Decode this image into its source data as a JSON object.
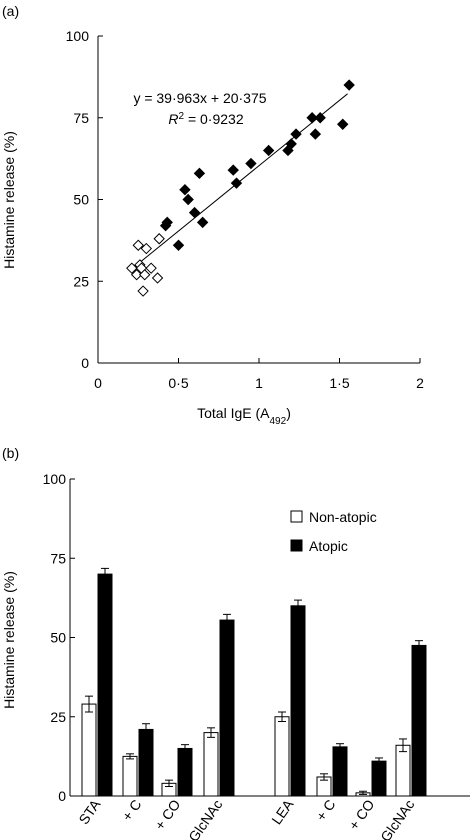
{
  "chart_data": [
    {
      "panel": "(a)",
      "type": "scatter",
      "xlabel": "Total IgE (A",
      "xlabel_sub": "492",
      "xlabel_end": ")",
      "ylabel": "Histamine release (%)",
      "xlim": [
        0,
        2
      ],
      "ylim": [
        0,
        100
      ],
      "xticks": [
        "0",
        "0·5",
        "1",
        "1·5",
        "2"
      ],
      "yticks": [
        "0",
        "25",
        "50",
        "75",
        "100"
      ],
      "equation": "y = 39·963x + 20·375",
      "r2_label": "R",
      "r2_sup": "2",
      "r2_value": " = 0·9232",
      "fit": {
        "slope": 39.963,
        "intercept": 20.375,
        "x_range": [
          0.2,
          1.55
        ]
      },
      "series": [
        {
          "name": "Non-atopic",
          "marker": "open-diamond",
          "points": [
            [
              0.21,
              29
            ],
            [
              0.24,
              27
            ],
            [
              0.25,
              36
            ],
            [
              0.26,
              30
            ],
            [
              0.27,
              29
            ],
            [
              0.28,
              22
            ],
            [
              0.29,
              27
            ],
            [
              0.3,
              35
            ],
            [
              0.33,
              29
            ],
            [
              0.37,
              26
            ],
            [
              0.38,
              38
            ]
          ]
        },
        {
          "name": "Atopic",
          "marker": "filled-diamond",
          "points": [
            [
              0.42,
              42
            ],
            [
              0.43,
              43
            ],
            [
              0.5,
              36
            ],
            [
              0.54,
              53
            ],
            [
              0.56,
              50
            ],
            [
              0.6,
              46
            ],
            [
              0.63,
              58
            ],
            [
              0.65,
              43
            ],
            [
              0.84,
              59
            ],
            [
              0.86,
              55
            ],
            [
              0.95,
              61
            ],
            [
              1.06,
              65
            ],
            [
              1.18,
              65
            ],
            [
              1.2,
              67
            ],
            [
              1.23,
              70
            ],
            [
              1.33,
              75
            ],
            [
              1.35,
              70
            ],
            [
              1.38,
              75
            ],
            [
              1.52,
              73
            ],
            [
              1.56,
              85
            ]
          ]
        }
      ]
    },
    {
      "panel": "(b)",
      "type": "bar",
      "ylabel": "Histamine release (%)",
      "ylim": [
        0,
        100
      ],
      "yticks": [
        "0",
        "25",
        "50",
        "75",
        "100"
      ],
      "categories": [
        "STA",
        "+ C",
        "+ CO",
        "+ GlcNAc",
        "LEA",
        "+ C",
        "+ CO",
        "+ GlcNAc"
      ],
      "legend_position": "top-right",
      "series": [
        {
          "name": "Non-atopic",
          "color": "#ffffff",
          "values": [
            29,
            12.5,
            4,
            20,
            25,
            6,
            1,
            16
          ],
          "errors": [
            2.5,
            0.8,
            1,
            1.5,
            1.5,
            1,
            0.5,
            2
          ]
        },
        {
          "name": "Atopic",
          "color": "#000000",
          "values": [
            70,
            21,
            15,
            55.5,
            60,
            15.5,
            11,
            47.5
          ],
          "errors": [
            1.8,
            1.8,
            1.2,
            1.8,
            1.8,
            1,
            1,
            1.5
          ]
        }
      ]
    }
  ]
}
